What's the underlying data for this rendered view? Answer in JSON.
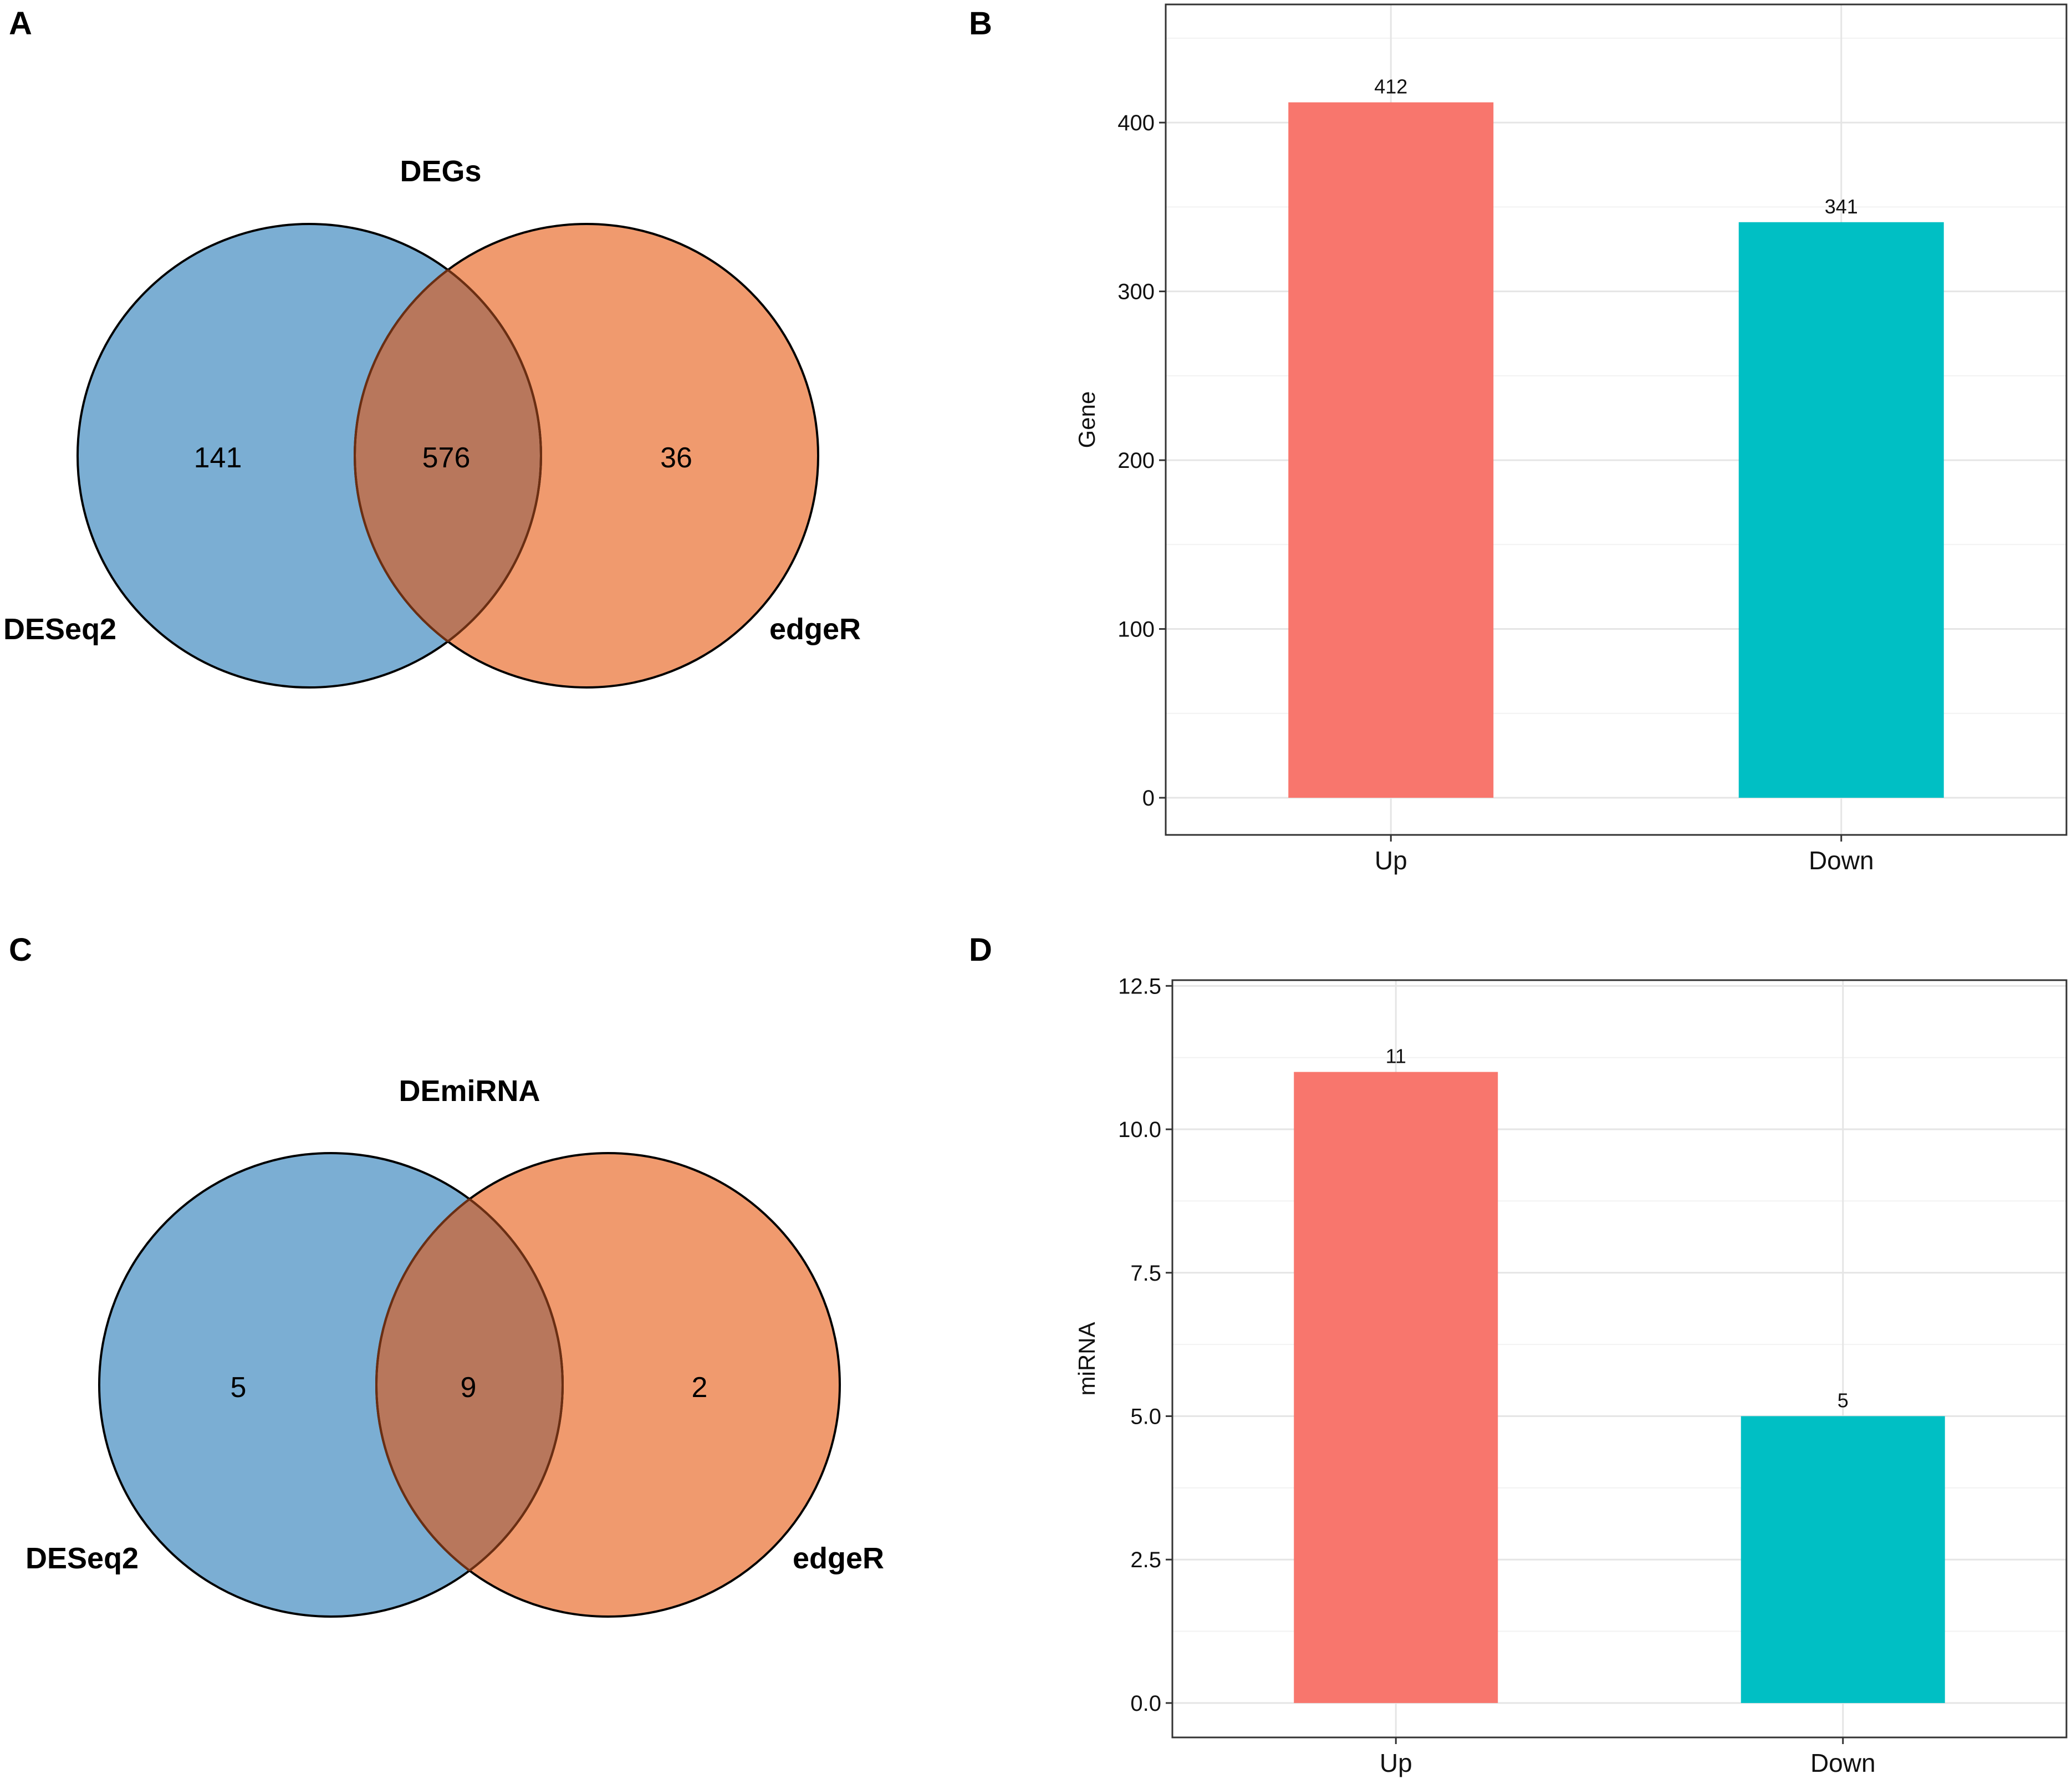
{
  "panels": {
    "a": "A",
    "b": "B",
    "c": "C",
    "d": "D"
  },
  "colors": {
    "venn_left": "#7BAED3",
    "venn_right": "#F09A6E",
    "venn_overlap": "#B8775C",
    "bar_up": "#F8766D",
    "bar_down": "#00BFC4",
    "grid": "#E5E5E5"
  },
  "venn_a": {
    "title": "DEGs",
    "left_label": "DESeq2",
    "right_label": "edgeR",
    "left_only": "141",
    "both": "576",
    "right_only": "36"
  },
  "venn_c": {
    "title": "DEmiRNA",
    "left_label": "DESeq2",
    "right_label": "edgeR",
    "left_only": "5",
    "both": "9",
    "right_only": "2"
  },
  "chart_data": [
    {
      "panel": "B",
      "type": "bar",
      "categories": [
        "Up",
        "Down"
      ],
      "values": [
        412,
        341
      ],
      "value_labels": [
        "412",
        "341"
      ],
      "xlabel": "",
      "ylabel": "Gene",
      "ylim": [
        -22,
        470
      ],
      "yticks": [
        0,
        100,
        200,
        300,
        400
      ],
      "ytick_labels": [
        "0",
        "100",
        "200",
        "300",
        "400"
      ],
      "grid": true
    },
    {
      "panel": "D",
      "type": "bar",
      "categories": [
        "Up",
        "Down"
      ],
      "values": [
        11,
        5
      ],
      "value_labels": [
        "11",
        "5"
      ],
      "xlabel": "",
      "ylabel": "miRNA",
      "ylim": [
        -0.6,
        12.6
      ],
      "yticks": [
        0.0,
        2.5,
        5.0,
        7.5,
        10.0,
        12.5
      ],
      "ytick_labels": [
        "0.0",
        "2.5",
        "5.0",
        "7.5",
        "10.0",
        "12.5"
      ],
      "grid": true
    }
  ]
}
